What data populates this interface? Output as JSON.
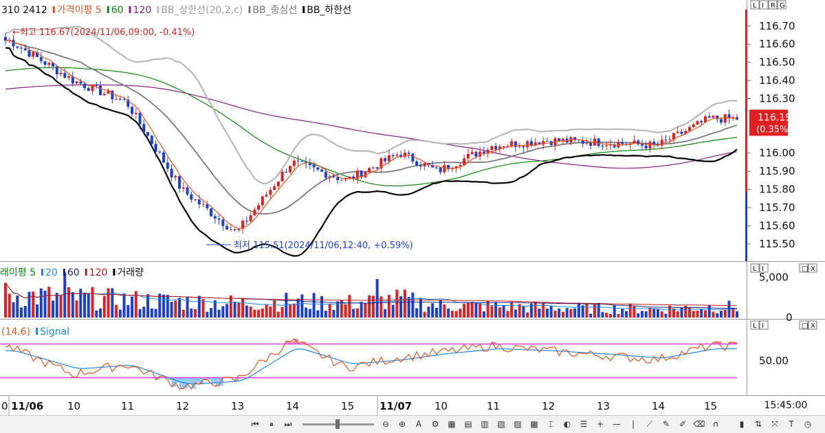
{
  "main_legend": [
    {
      "text": "310 2412",
      "color": "#000000"
    },
    {
      "text": "가격이평 5",
      "color": "#e8541c"
    },
    {
      "text": "60",
      "color": "#0a8a0a"
    },
    {
      "text": "120",
      "color": "#8a1a8a"
    },
    {
      "text": "BB_상한선(20,2,c)",
      "color": "#b8b8b8"
    },
    {
      "text": "BB_중심선",
      "color": "#7a7a7a"
    },
    {
      "text": "BB_하한선",
      "color": "#000000"
    }
  ],
  "high_annotation": "←최고 116.67(2024/11/06,09:00, -0.41%)",
  "low_annotation": "최저 115.51(2024/11/06,12:40, +0.59%)",
  "price_axis_ticks": [
    "116.70",
    "116.60",
    "116.50",
    "116.40",
    "116.30",
    "116.00",
    "115.90",
    "115.80",
    "115.70",
    "115.60",
    "115.50"
  ],
  "current_price": "116.19",
  "current_change": "(0.35%)",
  "volume_legend": [
    {
      "text": "래이평 5",
      "color": "#0a8a0a"
    },
    {
      "text": "20",
      "color": "#1e88e5"
    },
    {
      "text": "60",
      "color": "#1a237e"
    },
    {
      "text": "120",
      "color": "#b71c1c"
    },
    {
      "text": "거래량",
      "color": "#000000"
    }
  ],
  "volume_axis_ticks": [
    "5,000",
    "0"
  ],
  "stoch_legend": [
    {
      "text": "(14,6)",
      "color": "#e8541c"
    },
    {
      "text": "Signal",
      "color": "#1e88e5"
    }
  ],
  "stoch_axis_ticks": [
    "50.00"
  ],
  "time_axis_labels": [
    "0",
    "11/06",
    "10",
    "11",
    "12",
    "13",
    "14",
    "15",
    "11/07",
    "10",
    "11",
    "12",
    "13",
    "14",
    "15"
  ],
  "current_time": "15:45:00",
  "panel_buttons_main": [
    "L",
    "I",
    "R",
    "G"
  ],
  "panel_buttons_sub": [
    "L",
    "I",
    "□",
    "X"
  ],
  "colors": {
    "up": "#e02020",
    "down": "#1a3fd6",
    "ma5": "#e8541c",
    "ma60": "#0a8a0a",
    "ma120": "#8a1a8a",
    "bb_upper": "#b8b8b8",
    "bb_mid": "#7a7a7a",
    "bb_lower": "#000000",
    "stoch": "#e8541c",
    "signal": "#1e88e5",
    "ref_line": "#e040e0",
    "axis_red": "#e02020",
    "axis_blue": "#1a3fd6"
  },
  "chart_data": [
    {
      "type": "candlestick",
      "xlabel": "",
      "ylabel": "",
      "ylim": [
        115.42,
        116.79
      ],
      "x": [
        "11/06 09:00",
        "11/06 10:00",
        "11/06 11:00",
        "11/06 12:00",
        "11/06 13:00",
        "11/06 14:00",
        "11/06 15:00",
        "11/07 09:00",
        "11/07 10:00",
        "11/07 11:00",
        "11/07 12:00",
        "11/07 13:00",
        "11/07 14:00",
        "11/07 15:00"
      ],
      "series": [
        {
          "values": [
            116.62,
            116.4,
            116.28,
            115.8,
            115.56,
            115.95,
            115.85,
            116.0,
            115.9,
            116.04,
            116.07,
            116.06,
            116.04,
            116.19
          ]
        }
      ]
    },
    {
      "type": "bar",
      "xlabel": "",
      "ylabel": "",
      "ylim": [
        0,
        6000
      ],
      "x": [
        "11/06 09:00",
        "11/06 10:00",
        "11/06 11:00",
        "11/06 12:00",
        "11/06 13:00",
        "11/06 14:00",
        "11/06 15:00",
        "11/07 09:00",
        "11/07 10:00",
        "11/07 11:00",
        "11/07 12:00",
        "11/07 13:00",
        "11/07 14:00",
        "11/07 15:00"
      ],
      "series": [
        {
          "values": [
            3000,
            2600,
            2300,
            2100,
            1900,
            2100,
            1900,
            2400,
            1600,
            1500,
            1300,
            1200,
            1100,
            1400
          ]
        }
      ]
    },
    {
      "type": "line",
      "xlabel": "",
      "ylabel": "",
      "ylim": [
        0,
        100
      ],
      "x": [
        "11/06 09:00",
        "11/06 10:00",
        "11/06 11:00",
        "11/06 12:00",
        "11/06 13:00",
        "11/06 14:00",
        "11/06 15:00",
        "11/07 09:00",
        "11/07 10:00",
        "11/07 11:00",
        "11/07 12:00",
        "11/07 13:00",
        "11/07 14:00",
        "11/07 15:00"
      ],
      "series": [
        {
          "name": "(14,6)",
          "values": [
            70,
            30,
            45,
            12,
            22,
            80,
            40,
            55,
            62,
            72,
            65,
            58,
            52,
            72
          ]
        },
        {
          "name": "Signal",
          "values": [
            65,
            38,
            44,
            15,
            20,
            70,
            45,
            52,
            60,
            68,
            65,
            60,
            54,
            68
          ]
        }
      ],
      "reference_lines": [
        75,
        25
      ]
    }
  ]
}
